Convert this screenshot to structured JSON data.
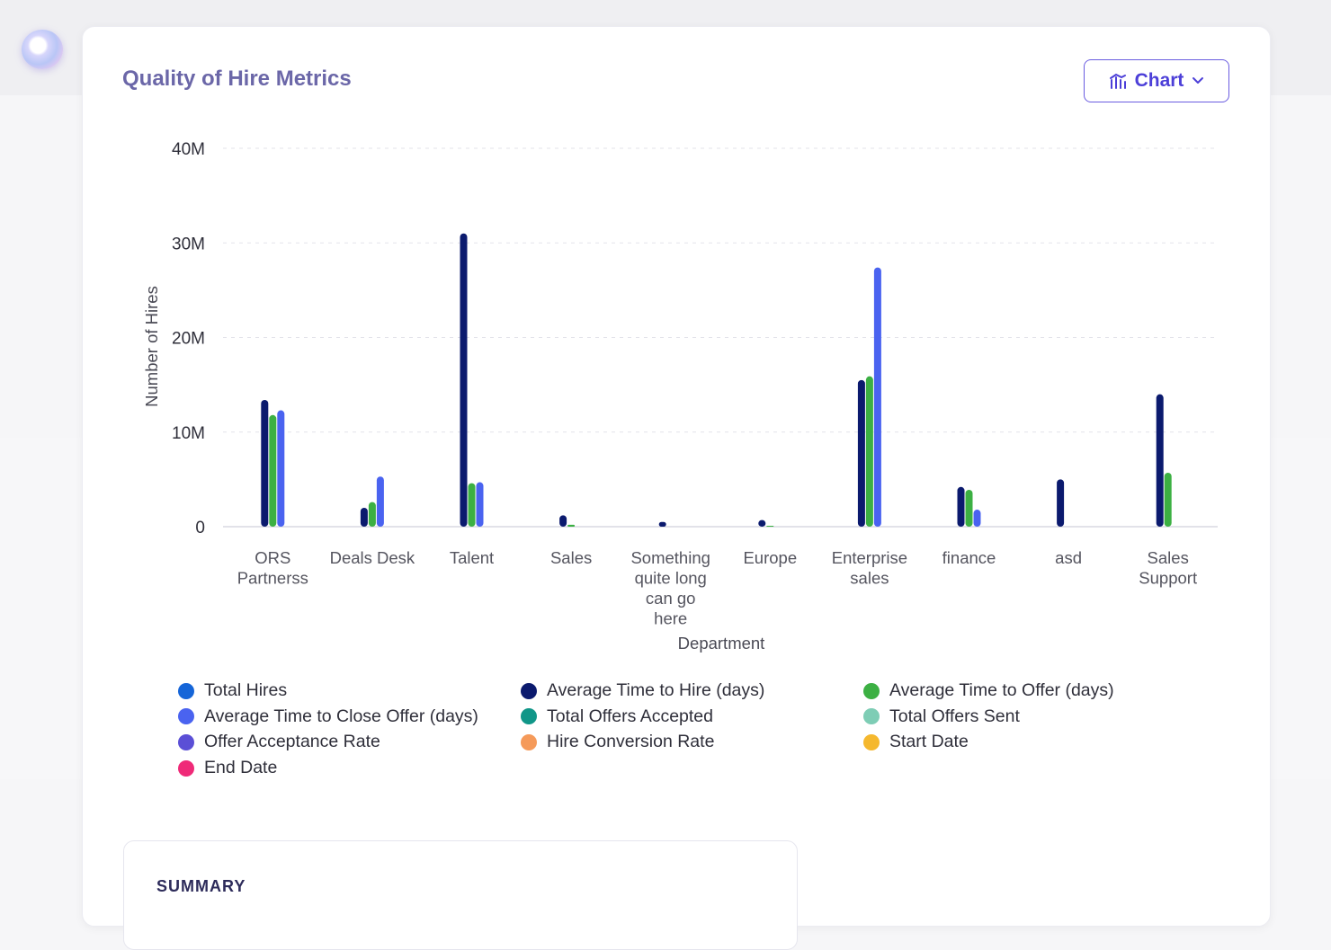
{
  "card": {
    "title": "Quality of Hire Metrics",
    "chart_button": {
      "label": "Chart",
      "icon": "bar-chart-icon",
      "chevron": "chevron-down-icon"
    }
  },
  "summary": {
    "label": "SUMMARY"
  },
  "chart_data": {
    "type": "bar",
    "title": "",
    "xlabel": "Department",
    "ylabel": "Number of Hires",
    "ylim": [
      0,
      40000000
    ],
    "yticks": [
      0,
      10000000,
      20000000,
      30000000,
      40000000
    ],
    "ytick_labels": [
      "0",
      "10M",
      "20M",
      "30M",
      "40M"
    ],
    "grid": "horizontal dashed",
    "legend_position": "bottom",
    "categories": [
      [
        "ORS",
        "Partnerss"
      ],
      [
        "Deals Desk"
      ],
      [
        "Talent"
      ],
      [
        "Sales"
      ],
      [
        "Something",
        "quite long",
        "can go",
        "here"
      ],
      [
        "Europe"
      ],
      [
        "Enterprise",
        "sales"
      ],
      [
        "finance"
      ],
      [
        "asd"
      ],
      [
        "Sales",
        "Support"
      ]
    ],
    "series": [
      {
        "name": "Total Hires",
        "color": "#1565d8",
        "values": [
          0,
          0,
          0,
          0,
          0,
          0,
          0,
          0,
          0,
          0
        ]
      },
      {
        "name": "Average Time to Hire (days)",
        "color": "#0b1a6e",
        "values": [
          13400000,
          2000000,
          31000000,
          1200000,
          500000,
          700000,
          15500000,
          4200000,
          5000000,
          14000000
        ]
      },
      {
        "name": "Average Time to Offer (days)",
        "color": "#3cb043",
        "values": [
          11800000,
          2600000,
          4600000,
          200000,
          0,
          100000,
          15900000,
          3900000,
          0,
          5700000
        ]
      },
      {
        "name": "Average Time to Close Offer (days)",
        "color": "#4a63f0",
        "values": [
          12300000,
          5300000,
          4700000,
          0,
          0,
          0,
          27400000,
          1800000,
          0,
          0
        ]
      },
      {
        "name": "Total Offers Accepted",
        "color": "#109688",
        "values": [
          0,
          0,
          0,
          0,
          0,
          0,
          0,
          0,
          0,
          0
        ]
      },
      {
        "name": "Total Offers Sent",
        "color": "#7ecdb5",
        "values": [
          0,
          0,
          0,
          0,
          0,
          0,
          0,
          0,
          0,
          0
        ]
      },
      {
        "name": "Offer Acceptance Rate",
        "color": "#5b4fd6",
        "values": [
          0,
          0,
          0,
          0,
          0,
          0,
          0,
          0,
          0,
          0
        ]
      },
      {
        "name": "Hire Conversion Rate",
        "color": "#f59a5a",
        "values": [
          0,
          0,
          0,
          0,
          0,
          0,
          0,
          0,
          0,
          0
        ]
      },
      {
        "name": "Start Date",
        "color": "#f5b82e",
        "values": [
          0,
          0,
          0,
          0,
          0,
          0,
          0,
          0,
          0,
          0
        ]
      },
      {
        "name": "End Date",
        "color": "#ef2a78",
        "values": [
          0,
          0,
          0,
          0,
          0,
          0,
          0,
          0,
          0,
          0
        ]
      }
    ],
    "legend_order": [
      "Total Hires",
      "Average Time to Hire (days)",
      "Average Time to Offer (days)",
      "Average Time to Close Offer (days)",
      "Total Offers Accepted",
      "Total Offers Sent",
      "Offer Acceptance Rate",
      "Hire Conversion Rate",
      "Start Date",
      "End Date"
    ]
  }
}
